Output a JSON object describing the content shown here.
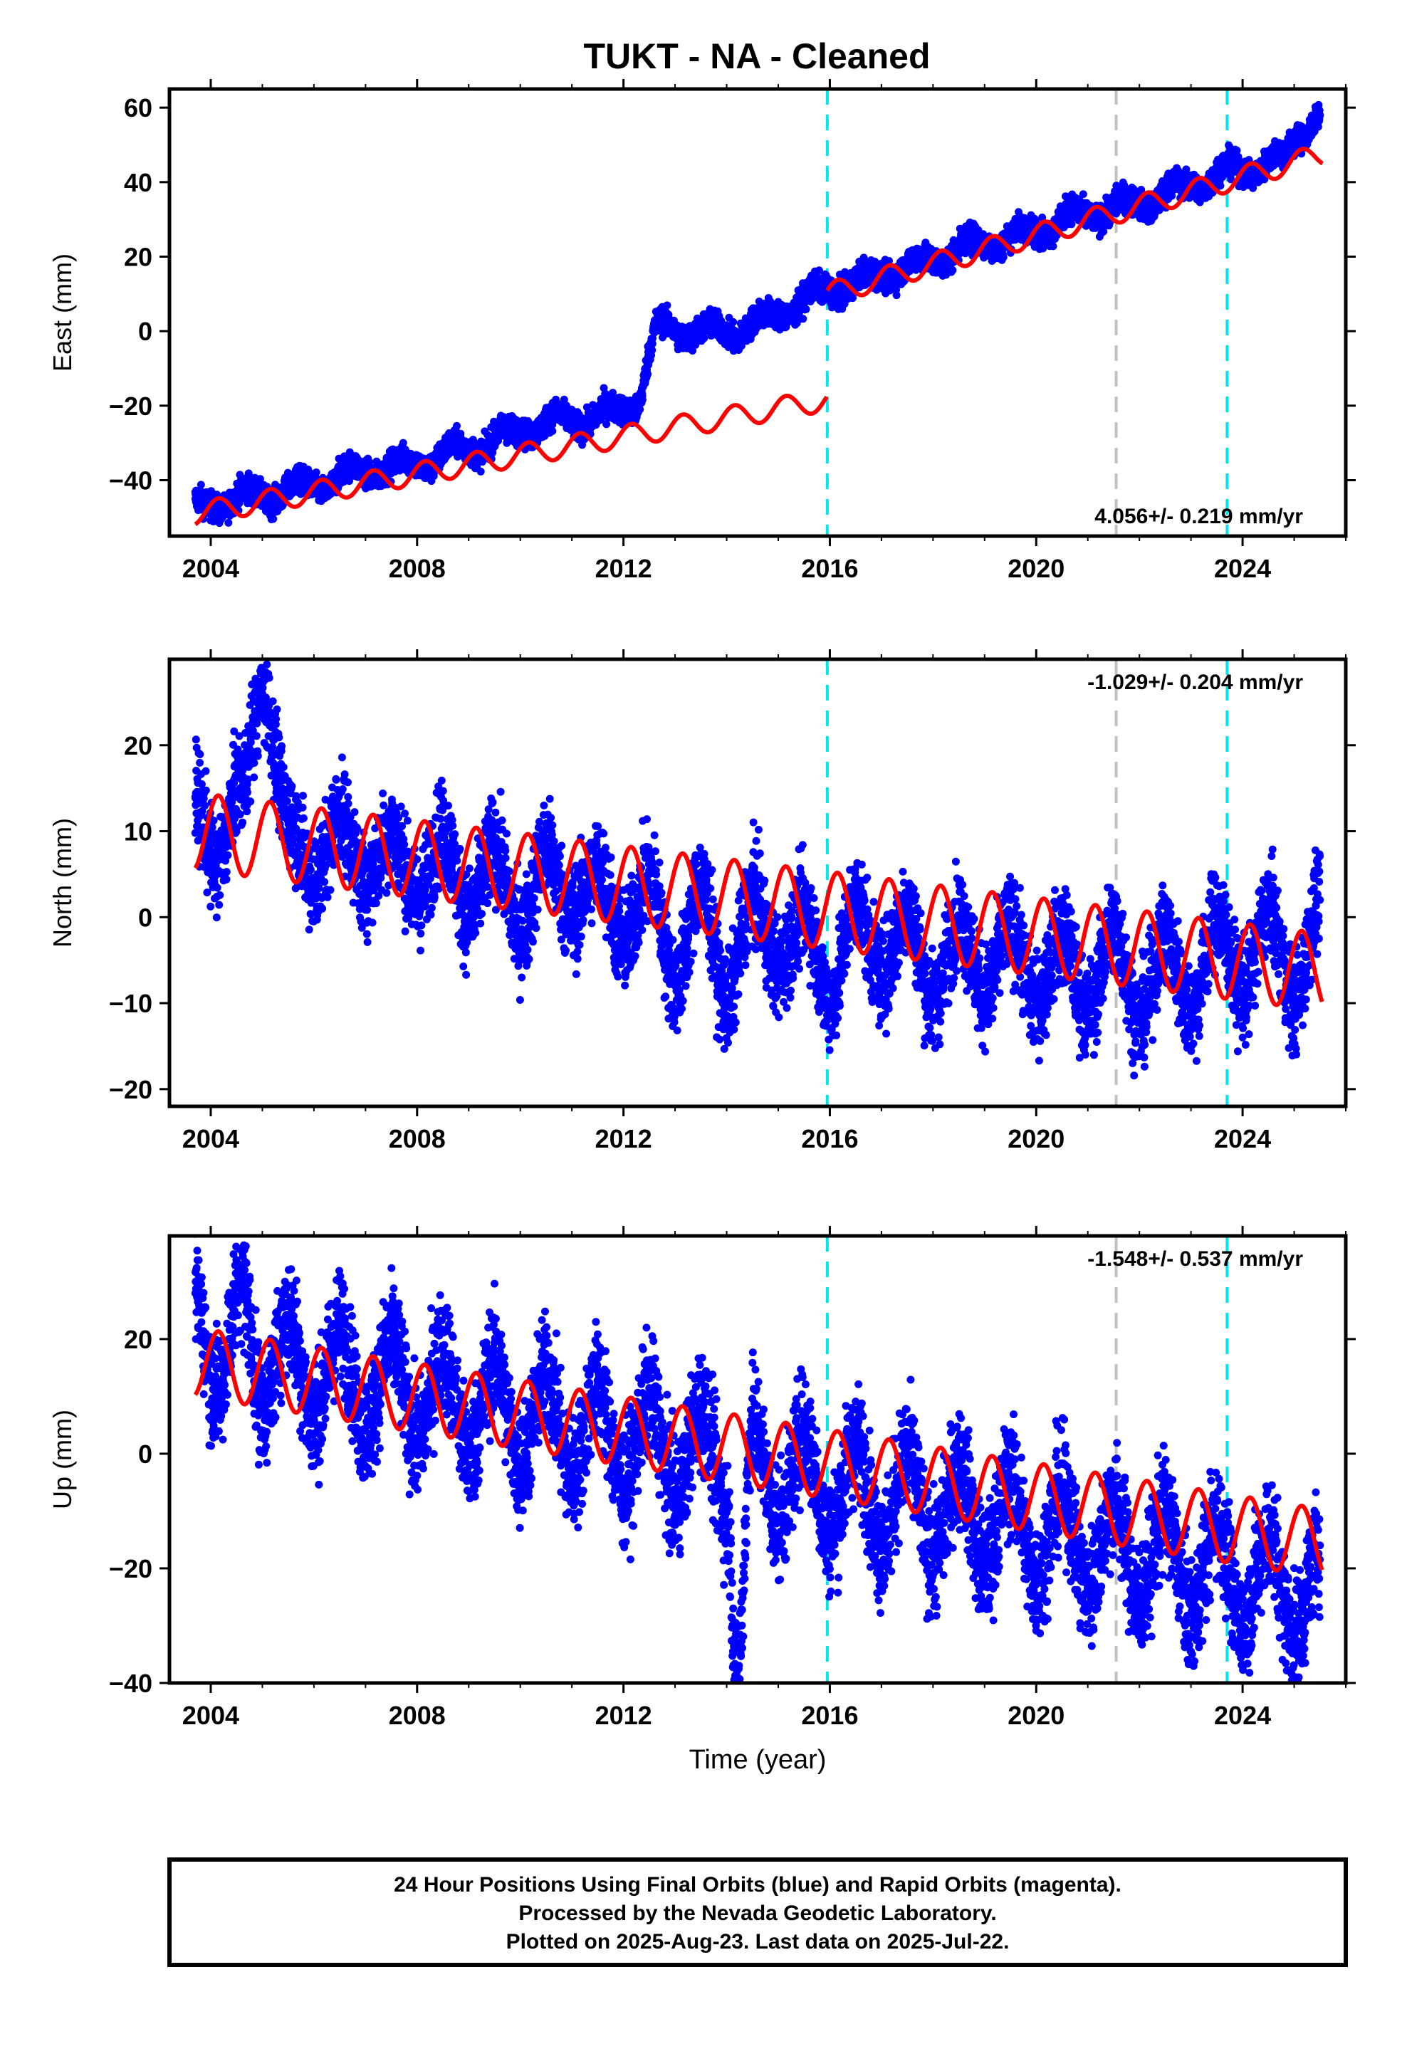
{
  "title": "TUKT  - NA - Cleaned",
  "footer": {
    "line1": "24 Hour Positions Using Final Orbits (blue) and Rapid Orbits (magenta).",
    "line2": "Processed by the Nevada Geodetic Laboratory.",
    "line3": "Plotted on 2025-Aug-23. Last data on 2025-Jul-22."
  },
  "colors": {
    "data": "#0000ff",
    "model": "#ff0000",
    "event_cyan": "#00e5ee",
    "event_gray": "#c0c0c0"
  },
  "chart_data": [
    {
      "type": "scatter",
      "ylabel": "East (mm)",
      "xlabel": "",
      "rate": "4.056+/- 0.219 mm/yr",
      "xlim": [
        2003.2,
        2026.0
      ],
      "ylim": [
        -55,
        65
      ],
      "xticks": [
        2004,
        2008,
        2012,
        2016,
        2020,
        2024
      ],
      "yticks": [
        -40,
        -20,
        0,
        20,
        40,
        60
      ],
      "cyan_lines": [
        2015.95,
        2023.7
      ],
      "gray_lines": [
        2021.55
      ],
      "model_segments": [
        {
          "t0": 2003.7,
          "t1": 2015.95,
          "y0": -49,
          "slope": 2.5,
          "amp": 3.0
        },
        {
          "t0": 2015.95,
          "t1": 2025.55,
          "y0": 10,
          "slope": 3.9,
          "amp": 3.0
        }
      ],
      "series": [
        {
          "x": [
            2003.7,
            2004.2,
            2004.7,
            2005.2,
            2005.7,
            2006.2,
            2006.7,
            2007.2,
            2007.7,
            2008.2,
            2008.7,
            2009.2,
            2009.7,
            2010.2,
            2010.7,
            2011.2,
            2011.7,
            2012.2,
            2012.7,
            2013.2,
            2013.7,
            2014.2,
            2014.7,
            2015.2,
            2015.7,
            2016.2,
            2016.7,
            2017.2,
            2017.7,
            2018.2,
            2018.7,
            2019.2,
            2019.7,
            2020.2,
            2020.7,
            2021.2,
            2021.7,
            2022.2,
            2022.7,
            2023.2,
            2023.7,
            2024.2,
            2024.7,
            2025.2,
            2025.5
          ],
          "y": [
            -45,
            -48,
            -42,
            -46,
            -40,
            -43,
            -36,
            -39,
            -34,
            -37,
            -30,
            -33,
            -26,
            -28,
            -22,
            -26,
            -20,
            -22,
            3,
            -2,
            2,
            -2,
            5,
            4,
            12,
            10,
            16,
            14,
            20,
            18,
            25,
            22,
            28,
            26,
            33,
            30,
            36,
            33,
            40,
            38,
            45,
            42,
            48,
            52,
            58
          ]
        }
      ]
    },
    {
      "type": "scatter",
      "ylabel": "North (mm)",
      "xlabel": "",
      "rate": "-1.029+/- 0.204 mm/yr",
      "xlim": [
        2003.2,
        2026.0
      ],
      "ylim": [
        -22,
        30
      ],
      "xticks": [
        2004,
        2008,
        2012,
        2016,
        2020,
        2024
      ],
      "yticks": [
        -20,
        -10,
        0,
        10,
        20
      ],
      "cyan_lines": [
        2015.95,
        2023.7
      ],
      "gray_lines": [
        2021.55
      ],
      "model_segments": [
        {
          "t0": 2003.7,
          "t1": 2025.55,
          "y0": 10,
          "slope": -0.75,
          "amp": 4.5
        }
      ],
      "series": [
        {
          "x": [
            2003.7,
            2004.1,
            2004.6,
            2005.0,
            2005.5,
            2006.0,
            2006.5,
            2007.0,
            2007.5,
            2008.0,
            2008.5,
            2009.0,
            2009.5,
            2010.0,
            2010.5,
            2011.0,
            2011.5,
            2012.0,
            2012.5,
            2013.0,
            2013.5,
            2014.0,
            2014.5,
            2015.0,
            2015.5,
            2016.0,
            2016.5,
            2017.0,
            2017.5,
            2018.0,
            2018.5,
            2019.0,
            2019.5,
            2020.0,
            2020.5,
            2021.0,
            2021.5,
            2022.0,
            2022.5,
            2023.0,
            2023.5,
            2024.0,
            2024.5,
            2025.0,
            2025.5
          ],
          "y": [
            14,
            6,
            16,
            26,
            12,
            4,
            12,
            4,
            10,
            2,
            10,
            0,
            8,
            -2,
            8,
            0,
            6,
            -3,
            5,
            -8,
            4,
            -10,
            3,
            -6,
            1,
            -10,
            2,
            -7,
            1,
            -10,
            0,
            -9,
            -1,
            -10,
            -2,
            -11,
            -1,
            -12,
            -2,
            -11,
            0,
            -9,
            1,
            -10,
            2
          ]
        }
      ]
    },
    {
      "type": "scatter",
      "ylabel": "Up (mm)",
      "xlabel": "Time (year)",
      "rate": "-1.548+/- 0.537 mm/yr",
      "xlim": [
        2003.2,
        2026.0
      ],
      "ylim": [
        -40,
        38
      ],
      "xticks": [
        2004,
        2008,
        2012,
        2016,
        2020,
        2024
      ],
      "yticks": [
        -40,
        -20,
        0,
        20
      ],
      "cyan_lines": [
        2015.95,
        2023.7
      ],
      "gray_lines": [
        2021.55
      ],
      "model_segments": [
        {
          "t0": 2003.7,
          "t1": 2025.55,
          "y0": 16,
          "slope": -1.45,
          "amp": 6.0
        }
      ],
      "series": [
        {
          "x": [
            2003.7,
            2004.1,
            2004.6,
            2005.0,
            2005.5,
            2006.0,
            2006.5,
            2007.0,
            2007.5,
            2008.0,
            2008.5,
            2009.0,
            2009.5,
            2010.0,
            2010.5,
            2011.0,
            2011.5,
            2012.0,
            2012.5,
            2013.0,
            2013.5,
            2014.0,
            2014.2,
            2014.5,
            2015.0,
            2015.5,
            2016.0,
            2016.5,
            2017.0,
            2017.5,
            2018.0,
            2018.5,
            2019.0,
            2019.5,
            2020.0,
            2020.5,
            2021.0,
            2021.5,
            2022.0,
            2022.5,
            2023.0,
            2023.5,
            2024.0,
            2024.5,
            2025.0,
            2025.5
          ],
          "y": [
            28,
            10,
            30,
            8,
            24,
            6,
            22,
            4,
            20,
            2,
            18,
            0,
            16,
            -2,
            14,
            -4,
            12,
            -6,
            10,
            -8,
            8,
            -10,
            -38,
            6,
            -12,
            4,
            -14,
            2,
            -16,
            0,
            -18,
            -2,
            -20,
            -4,
            -22,
            -6,
            -24,
            -8,
            -26,
            -10,
            -28,
            -12,
            -30,
            -14,
            -32,
            -16
          ]
        }
      ]
    }
  ]
}
